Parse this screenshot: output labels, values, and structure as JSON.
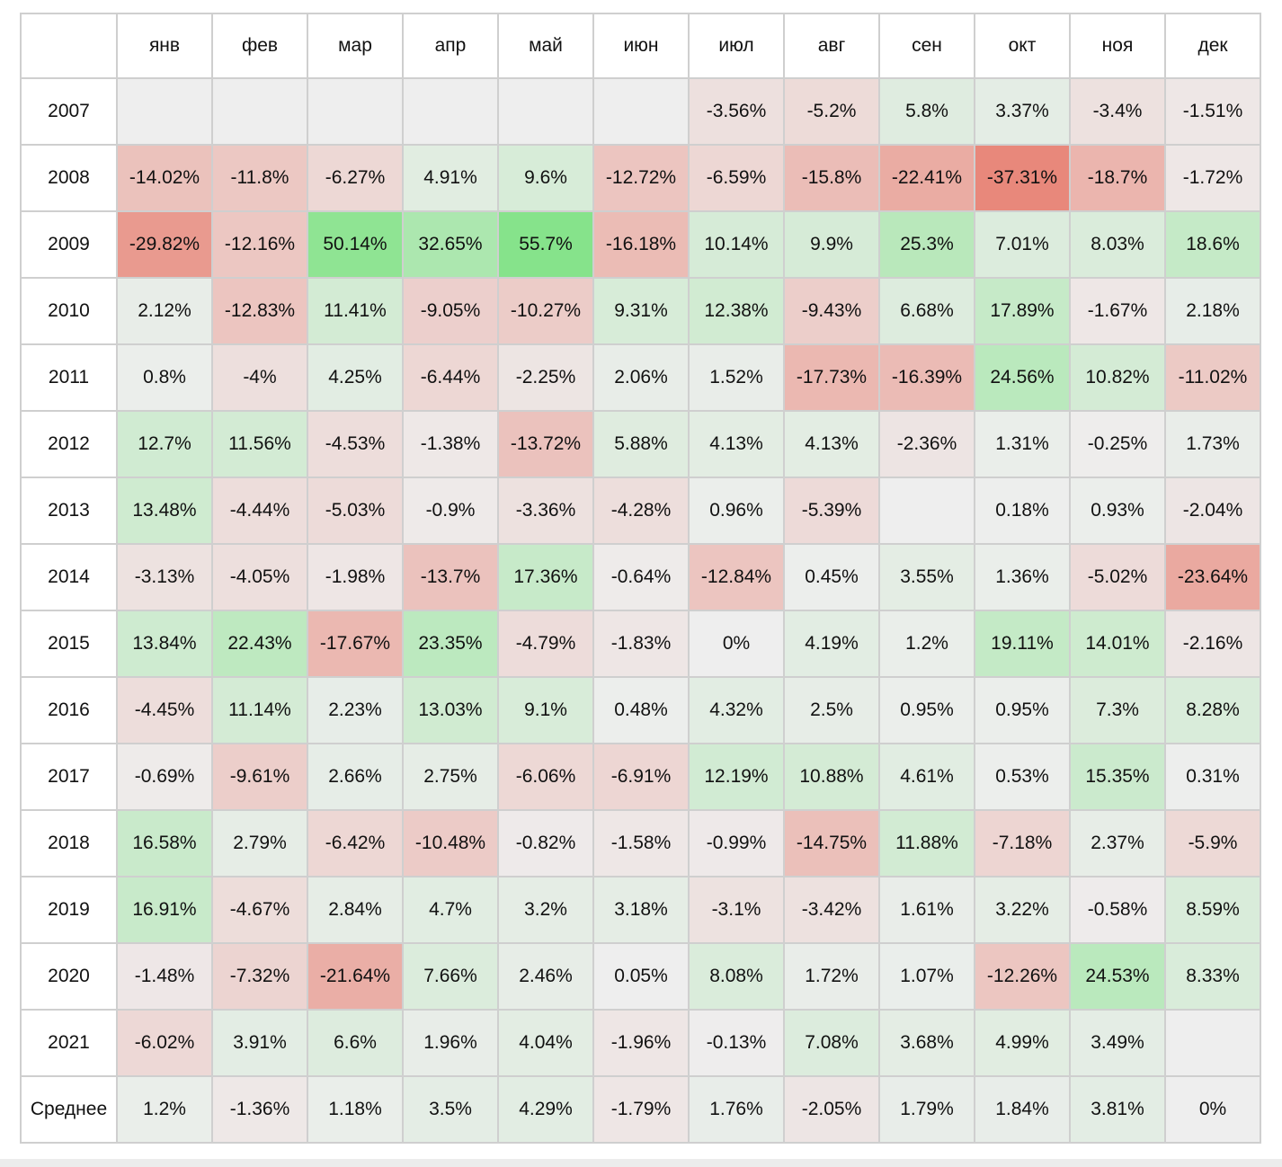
{
  "colors": {
    "neutral": "#eeeeee",
    "positive_max": "#86e38b",
    "negative_max": "#e8887b",
    "header_bg": "#ffffff",
    "border": "#cfcfcf"
  },
  "chart_data": {
    "type": "heatmap",
    "corner_label": "",
    "columns": [
      "янв",
      "фев",
      "мар",
      "апр",
      "май",
      "июн",
      "июл",
      "авг",
      "сен",
      "окт",
      "ноя",
      "дек"
    ],
    "rows": [
      {
        "label": "2007",
        "cells": [
          "",
          "",
          "",
          "",
          "",
          "",
          "-3.56%",
          "-5.2%",
          "5.8%",
          "3.37%",
          "-3.4%",
          "-1.51%"
        ]
      },
      {
        "label": "2008",
        "cells": [
          "-14.02%",
          "-11.8%",
          "-6.27%",
          "4.91%",
          "9.6%",
          "-12.72%",
          "-6.59%",
          "-15.8%",
          "-22.41%",
          "-37.31%",
          "-18.7%",
          "-1.72%"
        ]
      },
      {
        "label": "2009",
        "cells": [
          "-29.82%",
          "-12.16%",
          "50.14%",
          "32.65%",
          "55.7%",
          "-16.18%",
          "10.14%",
          "9.9%",
          "25.3%",
          "7.01%",
          "8.03%",
          "18.6%"
        ]
      },
      {
        "label": "2010",
        "cells": [
          "2.12%",
          "-12.83%",
          "11.41%",
          "-9.05%",
          "-10.27%",
          "9.31%",
          "12.38%",
          "-9.43%",
          "6.68%",
          "17.89%",
          "-1.67%",
          "2.18%"
        ]
      },
      {
        "label": "2011",
        "cells": [
          "0.8%",
          "-4%",
          "4.25%",
          "-6.44%",
          "-2.25%",
          "2.06%",
          "1.52%",
          "-17.73%",
          "-16.39%",
          "24.56%",
          "10.82%",
          "-11.02%"
        ]
      },
      {
        "label": "2012",
        "cells": [
          "12.7%",
          "11.56%",
          "-4.53%",
          "-1.38%",
          "-13.72%",
          "5.88%",
          "4.13%",
          "4.13%",
          "-2.36%",
          "1.31%",
          "-0.25%",
          "1.73%"
        ]
      },
      {
        "label": "2013",
        "cells": [
          "13.48%",
          "-4.44%",
          "-5.03%",
          "-0.9%",
          "-3.36%",
          "-4.28%",
          "0.96%",
          "-5.39%",
          "",
          "0.18%",
          "0.93%",
          "-2.04%"
        ]
      },
      {
        "label": "2014",
        "cells": [
          "-3.13%",
          "-4.05%",
          "-1.98%",
          "-13.7%",
          "17.36%",
          "-0.64%",
          "-12.84%",
          "0.45%",
          "3.55%",
          "1.36%",
          "-5.02%",
          "-23.64%"
        ]
      },
      {
        "label": "2015",
        "cells": [
          "13.84%",
          "22.43%",
          "-17.67%",
          "23.35%",
          "-4.79%",
          "-1.83%",
          "0%",
          "4.19%",
          "1.2%",
          "19.11%",
          "14.01%",
          "-2.16%"
        ]
      },
      {
        "label": "2016",
        "cells": [
          "-4.45%",
          "11.14%",
          "2.23%",
          "13.03%",
          "9.1%",
          "0.48%",
          "4.32%",
          "2.5%",
          "0.95%",
          "0.95%",
          "7.3%",
          "8.28%"
        ]
      },
      {
        "label": "2017",
        "cells": [
          "-0.69%",
          "-9.61%",
          "2.66%",
          "2.75%",
          "-6.06%",
          "-6.91%",
          "12.19%",
          "10.88%",
          "4.61%",
          "0.53%",
          "15.35%",
          "0.31%"
        ]
      },
      {
        "label": "2018",
        "cells": [
          "16.58%",
          "2.79%",
          "-6.42%",
          "-10.48%",
          "-0.82%",
          "-1.58%",
          "-0.99%",
          "-14.75%",
          "11.88%",
          "-7.18%",
          "2.37%",
          "-5.9%"
        ]
      },
      {
        "label": "2019",
        "cells": [
          "16.91%",
          "-4.67%",
          "2.84%",
          "4.7%",
          "3.2%",
          "3.18%",
          "-3.1%",
          "-3.42%",
          "1.61%",
          "3.22%",
          "-0.58%",
          "8.59%"
        ]
      },
      {
        "label": "2020",
        "cells": [
          "-1.48%",
          "-7.32%",
          "-21.64%",
          "7.66%",
          "2.46%",
          "0.05%",
          "8.08%",
          "1.72%",
          "1.07%",
          "-12.26%",
          "24.53%",
          "8.33%"
        ]
      },
      {
        "label": "2021",
        "cells": [
          "-6.02%",
          "3.91%",
          "6.6%",
          "1.96%",
          "4.04%",
          "-1.96%",
          "-0.13%",
          "7.08%",
          "3.68%",
          "4.99%",
          "3.49%",
          ""
        ]
      },
      {
        "label": "Среднее",
        "cells": [
          "1.2%",
          "-1.36%",
          "1.18%",
          "3.5%",
          "4.29%",
          "-1.79%",
          "1.76%",
          "-2.05%",
          "1.79%",
          "1.84%",
          "3.81%",
          "0%"
        ]
      }
    ]
  }
}
